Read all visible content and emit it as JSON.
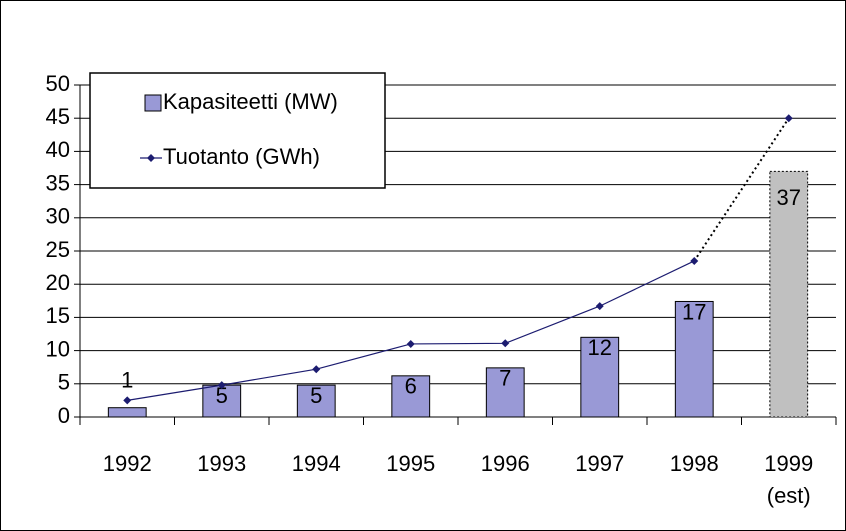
{
  "chart_data": {
    "type": "bar",
    "categories": [
      "1992",
      "1993",
      "1994",
      "1995",
      "1996",
      "1997",
      "1998",
      "1999 (est)"
    ],
    "series": [
      {
        "name": "Kapasiteetti (MW)",
        "type": "bar",
        "color": "#9999d6",
        "colors": [
          "#9999d6",
          "#9999d6",
          "#9999d6",
          "#9999d6",
          "#9999d6",
          "#9999d6",
          "#9999d6",
          "#c0c0c0"
        ],
        "last_bar_dashed": true,
        "values": [
          1.4,
          4.8,
          4.8,
          6.2,
          7.4,
          12,
          17.4,
          37
        ],
        "value_labels": [
          "1",
          "5",
          "5",
          "6",
          "7",
          "12",
          "17",
          "37"
        ]
      },
      {
        "name": "Tuotanto (GWh)",
        "type": "line",
        "color": "#1c1c70",
        "last_segment_dashed": true,
        "values": [
          2.5,
          4.8,
          7.2,
          11,
          11.1,
          16.7,
          23.5,
          45
        ]
      }
    ],
    "ylim": [
      0,
      50
    ],
    "yticks": [
      0,
      5,
      10,
      15,
      20,
      25,
      30,
      35,
      40,
      45,
      50
    ],
    "grid": true,
    "legend": "upper-left"
  }
}
